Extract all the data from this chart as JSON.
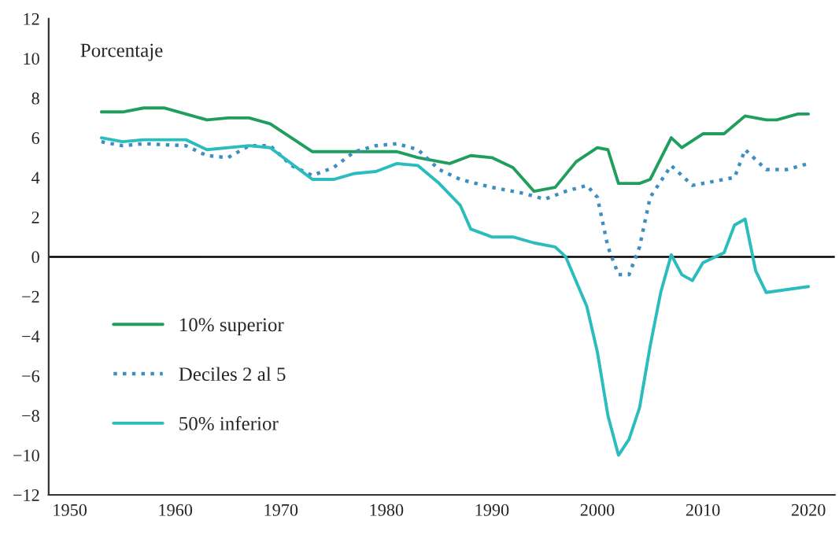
{
  "chart_data": {
    "type": "line",
    "ylabel": "Porcentaje",
    "xlim": [
      1948,
      2022.5
    ],
    "xticks": [
      1950,
      1960,
      1970,
      1980,
      1990,
      2000,
      2010,
      2020
    ],
    "ylim": [
      -12,
      12
    ],
    "yticks": [
      -12,
      -10,
      -8,
      -6,
      -4,
      -2,
      0,
      2,
      4,
      6,
      8,
      10,
      12
    ],
    "grid": false,
    "legend": "left",
    "marker": "none",
    "ref_lines": [
      {
        "axis": "y",
        "value": 0,
        "color": "#000000"
      }
    ],
    "series": [
      {
        "name": "10% superior",
        "color": "#1f9e5e",
        "line_style": "solid",
        "x": [
          1953,
          1955,
          1957,
          1959,
          1961,
          1963,
          1965,
          1967,
          1969,
          1971,
          1973,
          1975,
          1977,
          1979,
          1981,
          1983,
          1985,
          1986,
          1988,
          1990,
          1992,
          1994,
          1996,
          1998,
          2000,
          2001,
          2002,
          2004,
          2005,
          2007,
          2008,
          2010,
          2012,
          2014,
          2016,
          2017,
          2019,
          2020
        ],
        "values": [
          7.3,
          7.3,
          7.5,
          7.5,
          7.2,
          6.9,
          7.0,
          7.0,
          6.7,
          6.0,
          5.3,
          5.3,
          5.3,
          5.3,
          5.3,
          5.0,
          4.8,
          4.7,
          5.1,
          5.0,
          4.5,
          3.3,
          3.5,
          4.8,
          5.5,
          5.4,
          3.7,
          3.7,
          3.9,
          6.0,
          5.5,
          6.2,
          6.2,
          7.1,
          6.9,
          6.9,
          7.2,
          7.2
        ]
      },
      {
        "name": "Deciles 2 al 5",
        "color": "#3d8fc0",
        "line_style": "dotted",
        "x": [
          1953,
          1955,
          1957,
          1961,
          1963,
          1965,
          1967,
          1969,
          1971,
          1973,
          1975,
          1977,
          1979,
          1981,
          1983,
          1985,
          1987,
          1990,
          1993,
          1995,
          1997,
          1999,
          2000,
          2001,
          2002,
          2003,
          2004,
          2005,
          2007,
          2009,
          2011,
          2013,
          2014,
          2016,
          2018,
          2020
        ],
        "values": [
          5.8,
          5.6,
          5.7,
          5.6,
          5.1,
          5.0,
          5.6,
          5.6,
          4.6,
          4.1,
          4.5,
          5.3,
          5.6,
          5.7,
          5.4,
          4.4,
          3.9,
          3.5,
          3.2,
          2.9,
          3.3,
          3.6,
          3.0,
          0.5,
          -0.9,
          -0.9,
          0.5,
          3.0,
          4.6,
          3.6,
          3.8,
          4.0,
          5.4,
          4.4,
          4.4,
          4.7
        ]
      },
      {
        "name": "50% inferior",
        "color": "#2bbcbe",
        "line_style": "solid",
        "x": [
          1953,
          1955,
          1957,
          1961,
          1963,
          1967,
          1969,
          1971,
          1973,
          1975,
          1977,
          1979,
          1981,
          1983,
          1985,
          1987,
          1988,
          1990,
          1992,
          1994,
          1996,
          1997,
          1999,
          2000,
          2001,
          2002,
          2003,
          2004,
          2005,
          2006,
          2007,
          2008,
          2009,
          2010,
          2012,
          2013,
          2014,
          2015,
          2016,
          2020
        ],
        "values": [
          6.0,
          5.8,
          5.9,
          5.9,
          5.4,
          5.6,
          5.5,
          4.7,
          3.9,
          3.9,
          4.2,
          4.3,
          4.7,
          4.6,
          3.7,
          2.6,
          1.4,
          1.0,
          1.0,
          0.7,
          0.5,
          0,
          -2.5,
          -4.8,
          -8,
          -10,
          -9.2,
          -7.6,
          -4.5,
          -1.8,
          0.1,
          -0.9,
          -1.2,
          -0.3,
          0.2,
          1.6,
          1.9,
          -0.7,
          -1.8,
          -1.5
        ]
      }
    ]
  }
}
